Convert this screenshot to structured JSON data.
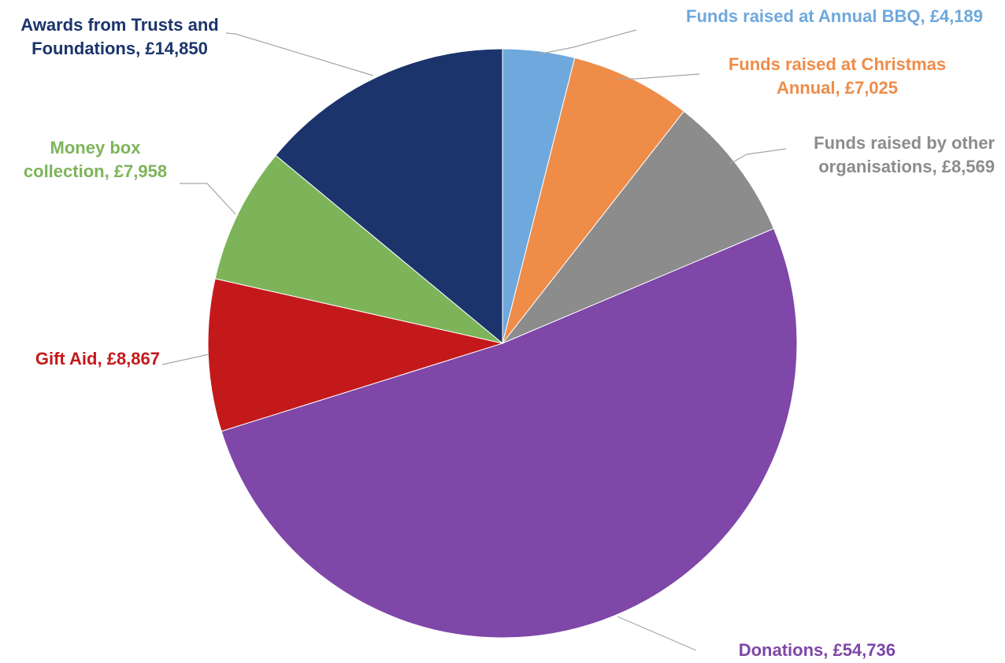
{
  "chart_data": {
    "type": "pie",
    "title": "",
    "start_angle_deg": 0,
    "direction": "clockwise",
    "slices": [
      {
        "key": "bbq",
        "label": "Funds raised at Annual BBQ, £4,189",
        "lines": [
          "Funds raised at Annual BBQ, £4,189"
        ],
        "category": "Funds raised at Annual BBQ",
        "value": 4189,
        "color": "#6fa8dc"
      },
      {
        "key": "christmas",
        "label": "Funds raised at Christmas Annual, £7,025",
        "lines": [
          "Funds raised at Christmas",
          "Annual, £7,025"
        ],
        "category": "Funds raised at Christmas Annual",
        "value": 7025,
        "color": "#ee8c48"
      },
      {
        "key": "other",
        "label": "Funds raised by other organisations, £8,569",
        "lines": [
          "Funds raised by other",
          "organisations, £8,569"
        ],
        "category": "Funds raised by other organisations",
        "value": 8569,
        "color": "#8c8c8c"
      },
      {
        "key": "donations",
        "label": "Donations, £54,736",
        "lines": [
          "Donations, £54,736"
        ],
        "category": "Donations",
        "value": 54736,
        "color": "#7e47a8"
      },
      {
        "key": "giftaid",
        "label": "Gift Aid, £8,867",
        "lines": [
          "Gift Aid, £8,867"
        ],
        "category": "Gift Aid",
        "value": 8867,
        "color": "#c4191b"
      },
      {
        "key": "moneybox",
        "label": "Money box collection, £7,958",
        "lines": [
          "Money box",
          "collection, £7,958"
        ],
        "category": "Money box collection",
        "value": 7958,
        "color": "#7db45a"
      },
      {
        "key": "trusts",
        "label": "Awards from Trusts and Foundations, £14,850",
        "lines": [
          "Awards from Trusts and",
          "Foundations, £14,850"
        ],
        "category": "Awards from Trusts and Foundations",
        "value": 14850,
        "color": "#1b346c"
      }
    ]
  }
}
